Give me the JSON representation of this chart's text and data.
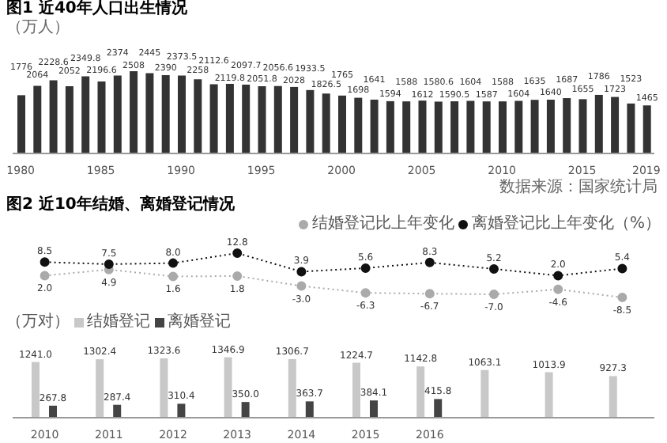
{
  "chart_data": [
    {
      "type": "bar",
      "title": "图1 近40年人口出生情况",
      "subtitle": "（万人）",
      "categories": [
        "1980",
        null,
        null,
        null,
        null,
        "1985",
        null,
        null,
        null,
        null,
        "1990",
        null,
        null,
        null,
        null,
        "1995",
        null,
        null,
        null,
        null,
        "2000",
        null,
        null,
        null,
        null,
        "2005",
        null,
        null,
        null,
        null,
        "2010",
        null,
        null,
        null,
        null,
        "2015",
        null,
        null,
        null,
        "2019"
      ],
      "values": [
        1776,
        2064,
        2228.6,
        2052,
        2349.8,
        2196.6,
        2374,
        2508,
        2445,
        2390,
        2373.5,
        2258,
        2112.6,
        2119.8,
        2097.7,
        2051.8,
        2056.6,
        2028,
        1933.5,
        1826.5,
        1765,
        1698,
        1641,
        1594,
        1588,
        1612,
        1580.6,
        1590.5,
        1604,
        1587,
        1588,
        1604,
        1635,
        1640,
        1687,
        1655,
        1786,
        1723,
        1523,
        1465
      ],
      "color": "#333333",
      "data_labels": true,
      "annotations": [
        "数据来源：国家统计局"
      ]
    },
    {
      "type": "line",
      "title": "图2 近10年结婚、离婚登记情况",
      "legend": "top right",
      "categories": [
        null,
        null,
        null,
        null,
        null,
        null,
        null,
        null,
        null,
        null
      ],
      "series": [
        {
          "name": "结婚登记比上年变化",
          "color": "#aaaaaa",
          "values": [
            2.0,
            4.9,
            1.6,
            1.8,
            -3.0,
            -6.3,
            -6.7,
            -7.0,
            -4.6,
            -8.5
          ],
          "value_labels": [
            "2.0",
            "4.9",
            "1.6",
            "1.8",
            "-3.0",
            "-6.3",
            "-6.7",
            "-7.0",
            "-4.6",
            "-8.5"
          ]
        },
        {
          "name": "离婚登记比上年变化（%）",
          "color": "#111111",
          "values": [
            8.5,
            7.5,
            8.0,
            12.8,
            3.9,
            5.6,
            8.3,
            5.2,
            2.0,
            5.4
          ],
          "value_labels": [
            "8.5",
            "7.5",
            "8.0",
            "12.8",
            "3.9",
            "5.6",
            "8.3",
            "5.2",
            "2.0",
            "5.4"
          ]
        }
      ],
      "marker": "circle",
      "line_style": "dotted"
    },
    {
      "type": "bar",
      "subtitle": "（万对）",
      "legend": "top left",
      "categories": [
        "2010",
        "2011",
        "2012",
        "2013",
        "2014",
        "2015",
        "2016",
        null,
        null,
        null
      ],
      "series": [
        {
          "name": "结婚登记",
          "color": "#c8c8c8",
          "values": [
            1241.0,
            1302.4,
            1323.6,
            1346.9,
            1306.7,
            1224.7,
            1142.8,
            1063.1,
            1013.9,
            927.3
          ],
          "value_labels": [
            "1241.0",
            "1302.4",
            "1323.6",
            "1346.9",
            "1306.7",
            "1224.7",
            "1142.8",
            "1063.1",
            "1013.9",
            "927.3"
          ]
        },
        {
          "name": "离婚登记",
          "color": "#444444",
          "values": [
            267.8,
            287.4,
            310.4,
            350.0,
            363.7,
            384.1,
            415.8,
            null,
            null,
            null
          ],
          "value_labels": [
            "267.8",
            "287.4",
            "310.4",
            "350.0",
            "363.7",
            "384.1",
            "415.8",
            null,
            null,
            null
          ]
        }
      ]
    }
  ]
}
